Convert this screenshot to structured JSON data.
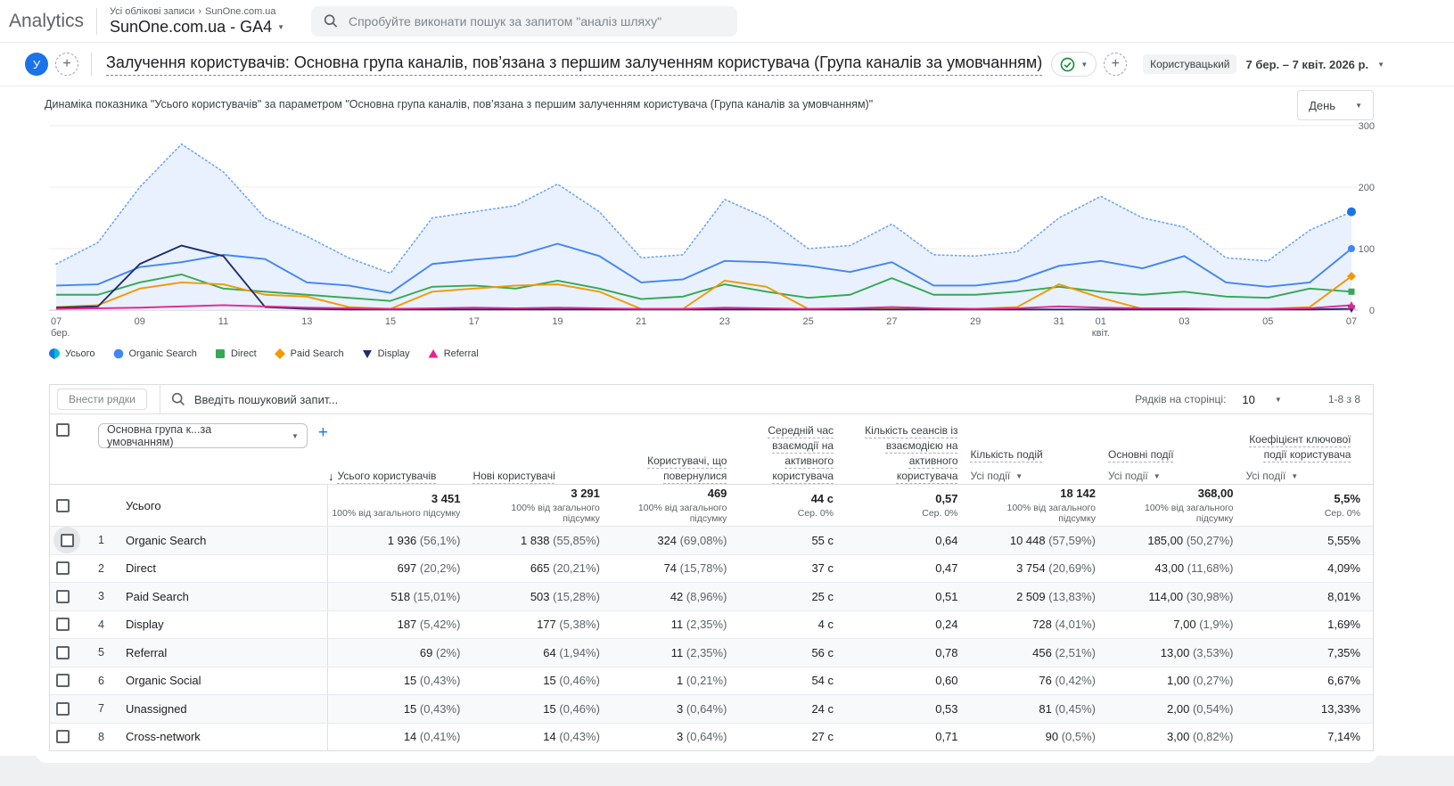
{
  "theme": {
    "accent": "#1a73e8",
    "green": "#1e8e3e"
  },
  "app_bar": {
    "logo": "Analytics",
    "breadcrumb_root": "Усі облікові записи",
    "breadcrumb_sep": "›",
    "breadcrumb_current": "SunOne.com.ua",
    "property": "SunOne.com.ua - GA4",
    "search_placeholder": "Спробуйте виконати пошук за запитом \"аналіз шляху\""
  },
  "report_header": {
    "avatar_letter": "У",
    "title": "Залучення користувачів: Основна група каналів, пов’язана з першим залученням користувача (Група каналів за умовчанням)",
    "badge": "Користувацький",
    "date_range": "7 бер. – 7 квіт. 2026 р."
  },
  "chart": {
    "subtitle": "Динаміка показника \"Усього користувачів\" за параметром \"Основна група каналів, пов’язана з першим залученням користувача (Група каналів за умовчанням)\"",
    "granularity": "День"
  },
  "chart_data": {
    "type": "line",
    "title": "Динаміка показника \"Усього користувачів\"",
    "x_range": "7 бер. – 7 квіт. 2026 р.",
    "n_points": 32,
    "ylim": [
      0,
      300
    ],
    "y_ticks": [
      0,
      100,
      200,
      300
    ],
    "y_axis_side": "right",
    "legend_position": "bottom-left",
    "x_ticks": [
      {
        "index": 0,
        "label": "07",
        "sublabel": "бер."
      },
      {
        "index": 2,
        "label": "09"
      },
      {
        "index": 4,
        "label": "11"
      },
      {
        "index": 6,
        "label": "13"
      },
      {
        "index": 8,
        "label": "15"
      },
      {
        "index": 10,
        "label": "17"
      },
      {
        "index": 12,
        "label": "19"
      },
      {
        "index": 14,
        "label": "21"
      },
      {
        "index": 16,
        "label": "23"
      },
      {
        "index": 18,
        "label": "25"
      },
      {
        "index": 20,
        "label": "27"
      },
      {
        "index": 22,
        "label": "29"
      },
      {
        "index": 24,
        "label": "31"
      },
      {
        "index": 25,
        "label": "01",
        "sublabel": "квіт."
      },
      {
        "index": 27,
        "label": "03"
      },
      {
        "index": 29,
        "label": "05"
      },
      {
        "index": 31,
        "label": "07"
      }
    ],
    "series": [
      {
        "name": "Усього",
        "marker": "pin",
        "color": "#1a73e8",
        "line_color": "#6fa4f8",
        "style": "dotted-area",
        "values": [
          75,
          110,
          200,
          270,
          225,
          150,
          120,
          85,
          60,
          150,
          160,
          170,
          205,
          160,
          85,
          90,
          180,
          150,
          100,
          105,
          140,
          90,
          88,
          95,
          150,
          185,
          150,
          135,
          85,
          80,
          130,
          160
        ]
      },
      {
        "name": "Organic Search",
        "marker": "circle",
        "color": "#4285f4",
        "style": "solid",
        "values": [
          40,
          42,
          70,
          78,
          90,
          83,
          45,
          40,
          28,
          75,
          82,
          88,
          108,
          88,
          45,
          50,
          80,
          78,
          72,
          62,
          78,
          40,
          40,
          48,
          72,
          80,
          68,
          88,
          45,
          38,
          45,
          100
        ]
      },
      {
        "name": "Direct",
        "marker": "square",
        "color": "#34a853",
        "style": "solid",
        "values": [
          25,
          25,
          45,
          58,
          35,
          30,
          25,
          20,
          15,
          38,
          40,
          35,
          48,
          35,
          18,
          22,
          42,
          30,
          20,
          25,
          52,
          25,
          25,
          30,
          38,
          30,
          25,
          30,
          22,
          20,
          35,
          30
        ]
      },
      {
        "name": "Paid Search",
        "marker": "diamond",
        "color": "#f29900",
        "style": "solid",
        "values": [
          5,
          8,
          35,
          45,
          42,
          25,
          22,
          5,
          2,
          30,
          35,
          40,
          42,
          30,
          2,
          2,
          48,
          38,
          2,
          2,
          2,
          2,
          2,
          5,
          42,
          20,
          2,
          2,
          2,
          2,
          5,
          55
        ]
      },
      {
        "name": "Display",
        "marker": "triangle-down",
        "color": "#1f2b70",
        "style": "solid",
        "values": [
          4,
          6,
          75,
          105,
          88,
          5,
          2,
          1,
          1,
          1,
          1,
          1,
          1,
          1,
          1,
          1,
          1,
          1,
          1,
          1,
          1,
          1,
          1,
          1,
          1,
          1,
          1,
          1,
          1,
          1,
          1,
          2
        ]
      },
      {
        "name": "Referral",
        "marker": "triangle-up",
        "color": "#e52592",
        "style": "solid",
        "values": [
          2,
          3,
          4,
          6,
          8,
          6,
          4,
          3,
          2,
          3,
          4,
          3,
          4,
          3,
          2,
          2,
          4,
          3,
          2,
          3,
          5,
          3,
          2,
          3,
          6,
          4,
          3,
          3,
          2,
          2,
          3,
          8
        ]
      }
    ]
  },
  "table": {
    "insert_rows_button": "Внести рядки",
    "search_placeholder": "Введіть пошуковий запит...",
    "rows_per_page_label": "Рядків на сторінці:",
    "rows_per_page_value": "10",
    "pagination": "1-8 з 8",
    "dimension_selector": "Основна група к...за умовчанням)",
    "columns": [
      {
        "title": "Усього користувачів",
        "sorted": true
      },
      {
        "title": "Нові користувачі"
      },
      {
        "title": "Користувачі, що повернулися"
      },
      {
        "title": "Середній час взаємодії на активного користувача"
      },
      {
        "title": "Кількість сеансів із взаємодією на активного користувача"
      },
      {
        "title": "Кількість подій",
        "sub": "Усі події"
      },
      {
        "title": "Основні події",
        "sub": "Усі події"
      },
      {
        "title": "Коефіцієнт ключової події користувача",
        "sub": "Усі події"
      }
    ],
    "totals": {
      "label": "Усього",
      "values": [
        "3 451",
        "3 291",
        "469",
        "44 с",
        "0,57",
        "18 142",
        "368,00",
        "5,5%"
      ],
      "subs": [
        "100% від загального підсумку",
        "100% від загального підсумку",
        "100% від загального підсумку",
        "Сер. 0%",
        "Сер. 0%",
        "100% від загального підсумку",
        "100% від загального підсумку",
        "Сер. 0%"
      ]
    },
    "rows": [
      {
        "n": "1",
        "channel": "Organic Search",
        "values": [
          "1 936 (56,1%)",
          "1 838 (55,85%)",
          "324 (69,08%)",
          "55 с",
          "0,64",
          "10 448 (57,59%)",
          "185,00 (50,27%)",
          "5,55%"
        ]
      },
      {
        "n": "2",
        "channel": "Direct",
        "values": [
          "697 (20,2%)",
          "665 (20,21%)",
          "74 (15,78%)",
          "37 с",
          "0,47",
          "3 754 (20,69%)",
          "43,00 (11,68%)",
          "4,09%"
        ]
      },
      {
        "n": "3",
        "channel": "Paid Search",
        "values": [
          "518 (15,01%)",
          "503 (15,28%)",
          "42 (8,96%)",
          "25 с",
          "0,51",
          "2 509 (13,83%)",
          "114,00 (30,98%)",
          "8,01%"
        ]
      },
      {
        "n": "4",
        "channel": "Display",
        "values": [
          "187 (5,42%)",
          "177 (5,38%)",
          "11 (2,35%)",
          "4 с",
          "0,24",
          "728 (4,01%)",
          "7,00 (1,9%)",
          "1,69%"
        ]
      },
      {
        "n": "5",
        "channel": "Referral",
        "values": [
          "69 (2%)",
          "64 (1,94%)",
          "11 (2,35%)",
          "56 с",
          "0,78",
          "456 (2,51%)",
          "13,00 (3,53%)",
          "7,35%"
        ]
      },
      {
        "n": "6",
        "channel": "Organic Social",
        "values": [
          "15 (0,43%)",
          "15 (0,46%)",
          "1 (0,21%)",
          "54 с",
          "0,60",
          "76 (0,42%)",
          "1,00 (0,27%)",
          "6,67%"
        ]
      },
      {
        "n": "7",
        "channel": "Unassigned",
        "values": [
          "15 (0,43%)",
          "15 (0,46%)",
          "3 (0,64%)",
          "24 с",
          "0,53",
          "81 (0,45%)",
          "2,00 (0,54%)",
          "13,33%"
        ]
      },
      {
        "n": "8",
        "channel": "Cross-network",
        "values": [
          "14 (0,41%)",
          "14 (0,43%)",
          "3 (0,64%)",
          "27 с",
          "0,71",
          "90 (0,5%)",
          "3,00 (0,82%)",
          "7,14%"
        ]
      }
    ]
  }
}
